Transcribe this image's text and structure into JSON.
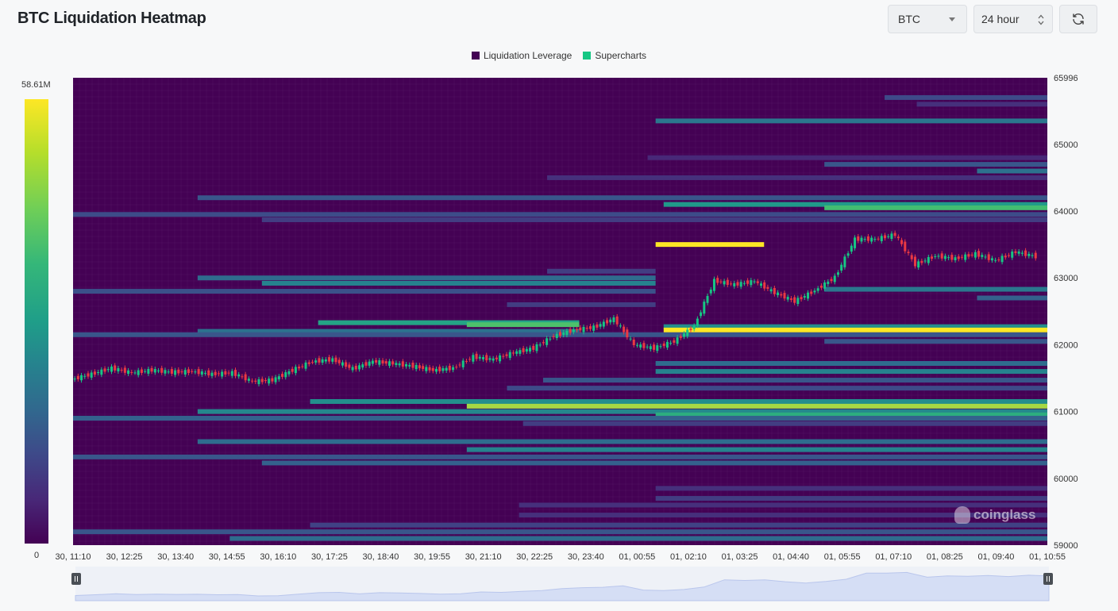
{
  "header": {
    "title": "BTC Liquidation Heatmap",
    "coin_select": "BTC",
    "range_select": "24 hour"
  },
  "colors": {
    "background_low": "#440154",
    "mid": "#21918c",
    "high": "#fde725",
    "candle_up": "#16c784",
    "candle_down": "#ea3943",
    "legend_leverage": "#440154",
    "legend_supercharts": "#16c784"
  },
  "colorbar": {
    "max_label": "58.61M",
    "min_label": "0"
  },
  "watermark": "coinglass",
  "chart_data": {
    "type": "heatmap",
    "title": "BTC Liquidation Heatmap",
    "legend": [
      "Liquidation Leverage",
      "Supercharts"
    ],
    "legend_position": "top-center",
    "color_scale": {
      "min": 0,
      "max": 58610000,
      "max_label": "58.61M",
      "palette": "viridis"
    },
    "x_tick_labels": [
      "30, 11:10",
      "30, 12:25",
      "30, 13:40",
      "30, 14:55",
      "30, 16:10",
      "30, 17:25",
      "30, 18:40",
      "30, 19:55",
      "30, 21:10",
      "30, 22:25",
      "30, 23:40",
      "01, 00:55",
      "01, 02:10",
      "01, 03:25",
      "01, 04:40",
      "01, 05:55",
      "01, 07:10",
      "01, 08:25",
      "01, 09:40",
      "01, 10:55"
    ],
    "y_ticks": [
      65996,
      65000,
      64000,
      63000,
      62000,
      61000,
      60000,
      59000
    ],
    "ylim": [
      59000,
      65996
    ],
    "x_range_hours": 24.25,
    "liquidation_bands": [
      {
        "price": 65700,
        "start": 20.2,
        "end": 24.25,
        "intensity": 0.25
      },
      {
        "price": 65600,
        "start": 21.0,
        "end": 24.25,
        "intensity": 0.15
      },
      {
        "price": 65350,
        "start": 14.5,
        "end": 24.25,
        "intensity": 0.45
      },
      {
        "price": 64800,
        "start": 14.3,
        "end": 24.25,
        "intensity": 0.12
      },
      {
        "price": 64700,
        "start": 18.7,
        "end": 24.25,
        "intensity": 0.3
      },
      {
        "price": 64600,
        "start": 22.5,
        "end": 24.25,
        "intensity": 0.42
      },
      {
        "price": 64500,
        "start": 11.8,
        "end": 24.25,
        "intensity": 0.15
      },
      {
        "price": 64200,
        "start": 3.1,
        "end": 24.25,
        "intensity": 0.3
      },
      {
        "price": 64100,
        "start": 14.7,
        "end": 24.25,
        "intensity": 0.6
      },
      {
        "price": 64050,
        "start": 18.7,
        "end": 24.25,
        "intensity": 0.78
      },
      {
        "price": 63950,
        "start": 0.0,
        "end": 24.25,
        "intensity": 0.26
      },
      {
        "price": 63870,
        "start": 4.7,
        "end": 24.25,
        "intensity": 0.2
      },
      {
        "price": 63500,
        "start": 14.5,
        "end": 17.2,
        "intensity": 1.0
      },
      {
        "price": 63100,
        "start": 11.8,
        "end": 14.5,
        "intensity": 0.2
      },
      {
        "price": 63000,
        "start": 3.1,
        "end": 14.5,
        "intensity": 0.4
      },
      {
        "price": 62920,
        "start": 4.7,
        "end": 14.5,
        "intensity": 0.5
      },
      {
        "price": 62830,
        "start": 18.7,
        "end": 24.25,
        "intensity": 0.45
      },
      {
        "price": 62800,
        "start": 0.0,
        "end": 14.5,
        "intensity": 0.28
      },
      {
        "price": 62700,
        "start": 22.5,
        "end": 24.25,
        "intensity": 0.35
      },
      {
        "price": 62600,
        "start": 10.8,
        "end": 14.5,
        "intensity": 0.2
      },
      {
        "price": 62330,
        "start": 6.1,
        "end": 12.6,
        "intensity": 0.65
      },
      {
        "price": 62300,
        "start": 9.8,
        "end": 12.6,
        "intensity": 0.8
      },
      {
        "price": 62270,
        "start": 14.7,
        "end": 24.25,
        "intensity": 0.55
      },
      {
        "price": 62220,
        "start": 14.7,
        "end": 24.25,
        "intensity": 1.0
      },
      {
        "price": 62200,
        "start": 3.1,
        "end": 12.6,
        "intensity": 0.42
      },
      {
        "price": 62150,
        "start": 0.0,
        "end": 24.25,
        "intensity": 0.3
      },
      {
        "price": 62050,
        "start": 18.7,
        "end": 24.25,
        "intensity": 0.3
      },
      {
        "price": 61720,
        "start": 14.5,
        "end": 24.25,
        "intensity": 0.4
      },
      {
        "price": 61600,
        "start": 14.5,
        "end": 24.25,
        "intensity": 0.5
      },
      {
        "price": 61470,
        "start": 11.7,
        "end": 24.25,
        "intensity": 0.3
      },
      {
        "price": 61350,
        "start": 10.8,
        "end": 24.25,
        "intensity": 0.25
      },
      {
        "price": 61150,
        "start": 5.9,
        "end": 24.25,
        "intensity": 0.55
      },
      {
        "price": 61080,
        "start": 9.8,
        "end": 24.25,
        "intensity": 0.92
      },
      {
        "price": 61000,
        "start": 3.1,
        "end": 24.25,
        "intensity": 0.52
      },
      {
        "price": 60950,
        "start": 14.5,
        "end": 24.25,
        "intensity": 0.7
      },
      {
        "price": 60900,
        "start": 0.0,
        "end": 24.25,
        "intensity": 0.35
      },
      {
        "price": 60820,
        "start": 11.2,
        "end": 24.25,
        "intensity": 0.2
      },
      {
        "price": 60550,
        "start": 3.1,
        "end": 24.25,
        "intensity": 0.4
      },
      {
        "price": 60430,
        "start": 9.8,
        "end": 24.25,
        "intensity": 0.5
      },
      {
        "price": 60320,
        "start": 0.0,
        "end": 24.25,
        "intensity": 0.3
      },
      {
        "price": 60230,
        "start": 4.7,
        "end": 24.25,
        "intensity": 0.35
      },
      {
        "price": 59850,
        "start": 14.5,
        "end": 24.25,
        "intensity": 0.15
      },
      {
        "price": 59700,
        "start": 14.5,
        "end": 24.25,
        "intensity": 0.2
      },
      {
        "price": 59600,
        "start": 11.1,
        "end": 24.25,
        "intensity": 0.15
      },
      {
        "price": 59450,
        "start": 11.1,
        "end": 24.25,
        "intensity": 0.15
      },
      {
        "price": 59300,
        "start": 5.9,
        "end": 24.25,
        "intensity": 0.22
      },
      {
        "price": 59200,
        "start": 0.0,
        "end": 24.25,
        "intensity": 0.3
      },
      {
        "price": 59100,
        "start": 3.9,
        "end": 24.25,
        "intensity": 0.4
      }
    ],
    "price_series": {
      "name": "Supercharts",
      "x_hours": [
        0.0,
        0.5,
        1.0,
        1.5,
        2.0,
        2.5,
        3.0,
        3.5,
        4.0,
        4.5,
        5.0,
        5.5,
        6.0,
        6.5,
        7.0,
        7.5,
        8.0,
        8.5,
        9.0,
        9.5,
        10.0,
        10.5,
        11.0,
        11.5,
        12.0,
        12.5,
        13.0,
        13.5,
        14.0,
        14.5,
        15.0,
        15.5,
        16.0,
        16.5,
        17.0,
        17.5,
        18.0,
        18.5,
        19.0,
        19.5,
        20.0,
        20.5,
        21.0,
        21.5,
        22.0,
        22.5,
        23.0,
        23.5,
        24.0
      ],
      "y": [
        61480,
        61560,
        61650,
        61580,
        61620,
        61590,
        61600,
        61560,
        61580,
        61450,
        61470,
        61620,
        61750,
        61780,
        61640,
        61750,
        61720,
        61680,
        61620,
        61650,
        61820,
        61780,
        61880,
        61950,
        62130,
        62220,
        62260,
        62390,
        62000,
        61950,
        62050,
        62280,
        62960,
        62900,
        62950,
        62780,
        62650,
        62810,
        63010,
        63580,
        63580,
        63650,
        63200,
        63330,
        63290,
        63360,
        63260,
        63390,
        63320
      ]
    }
  }
}
